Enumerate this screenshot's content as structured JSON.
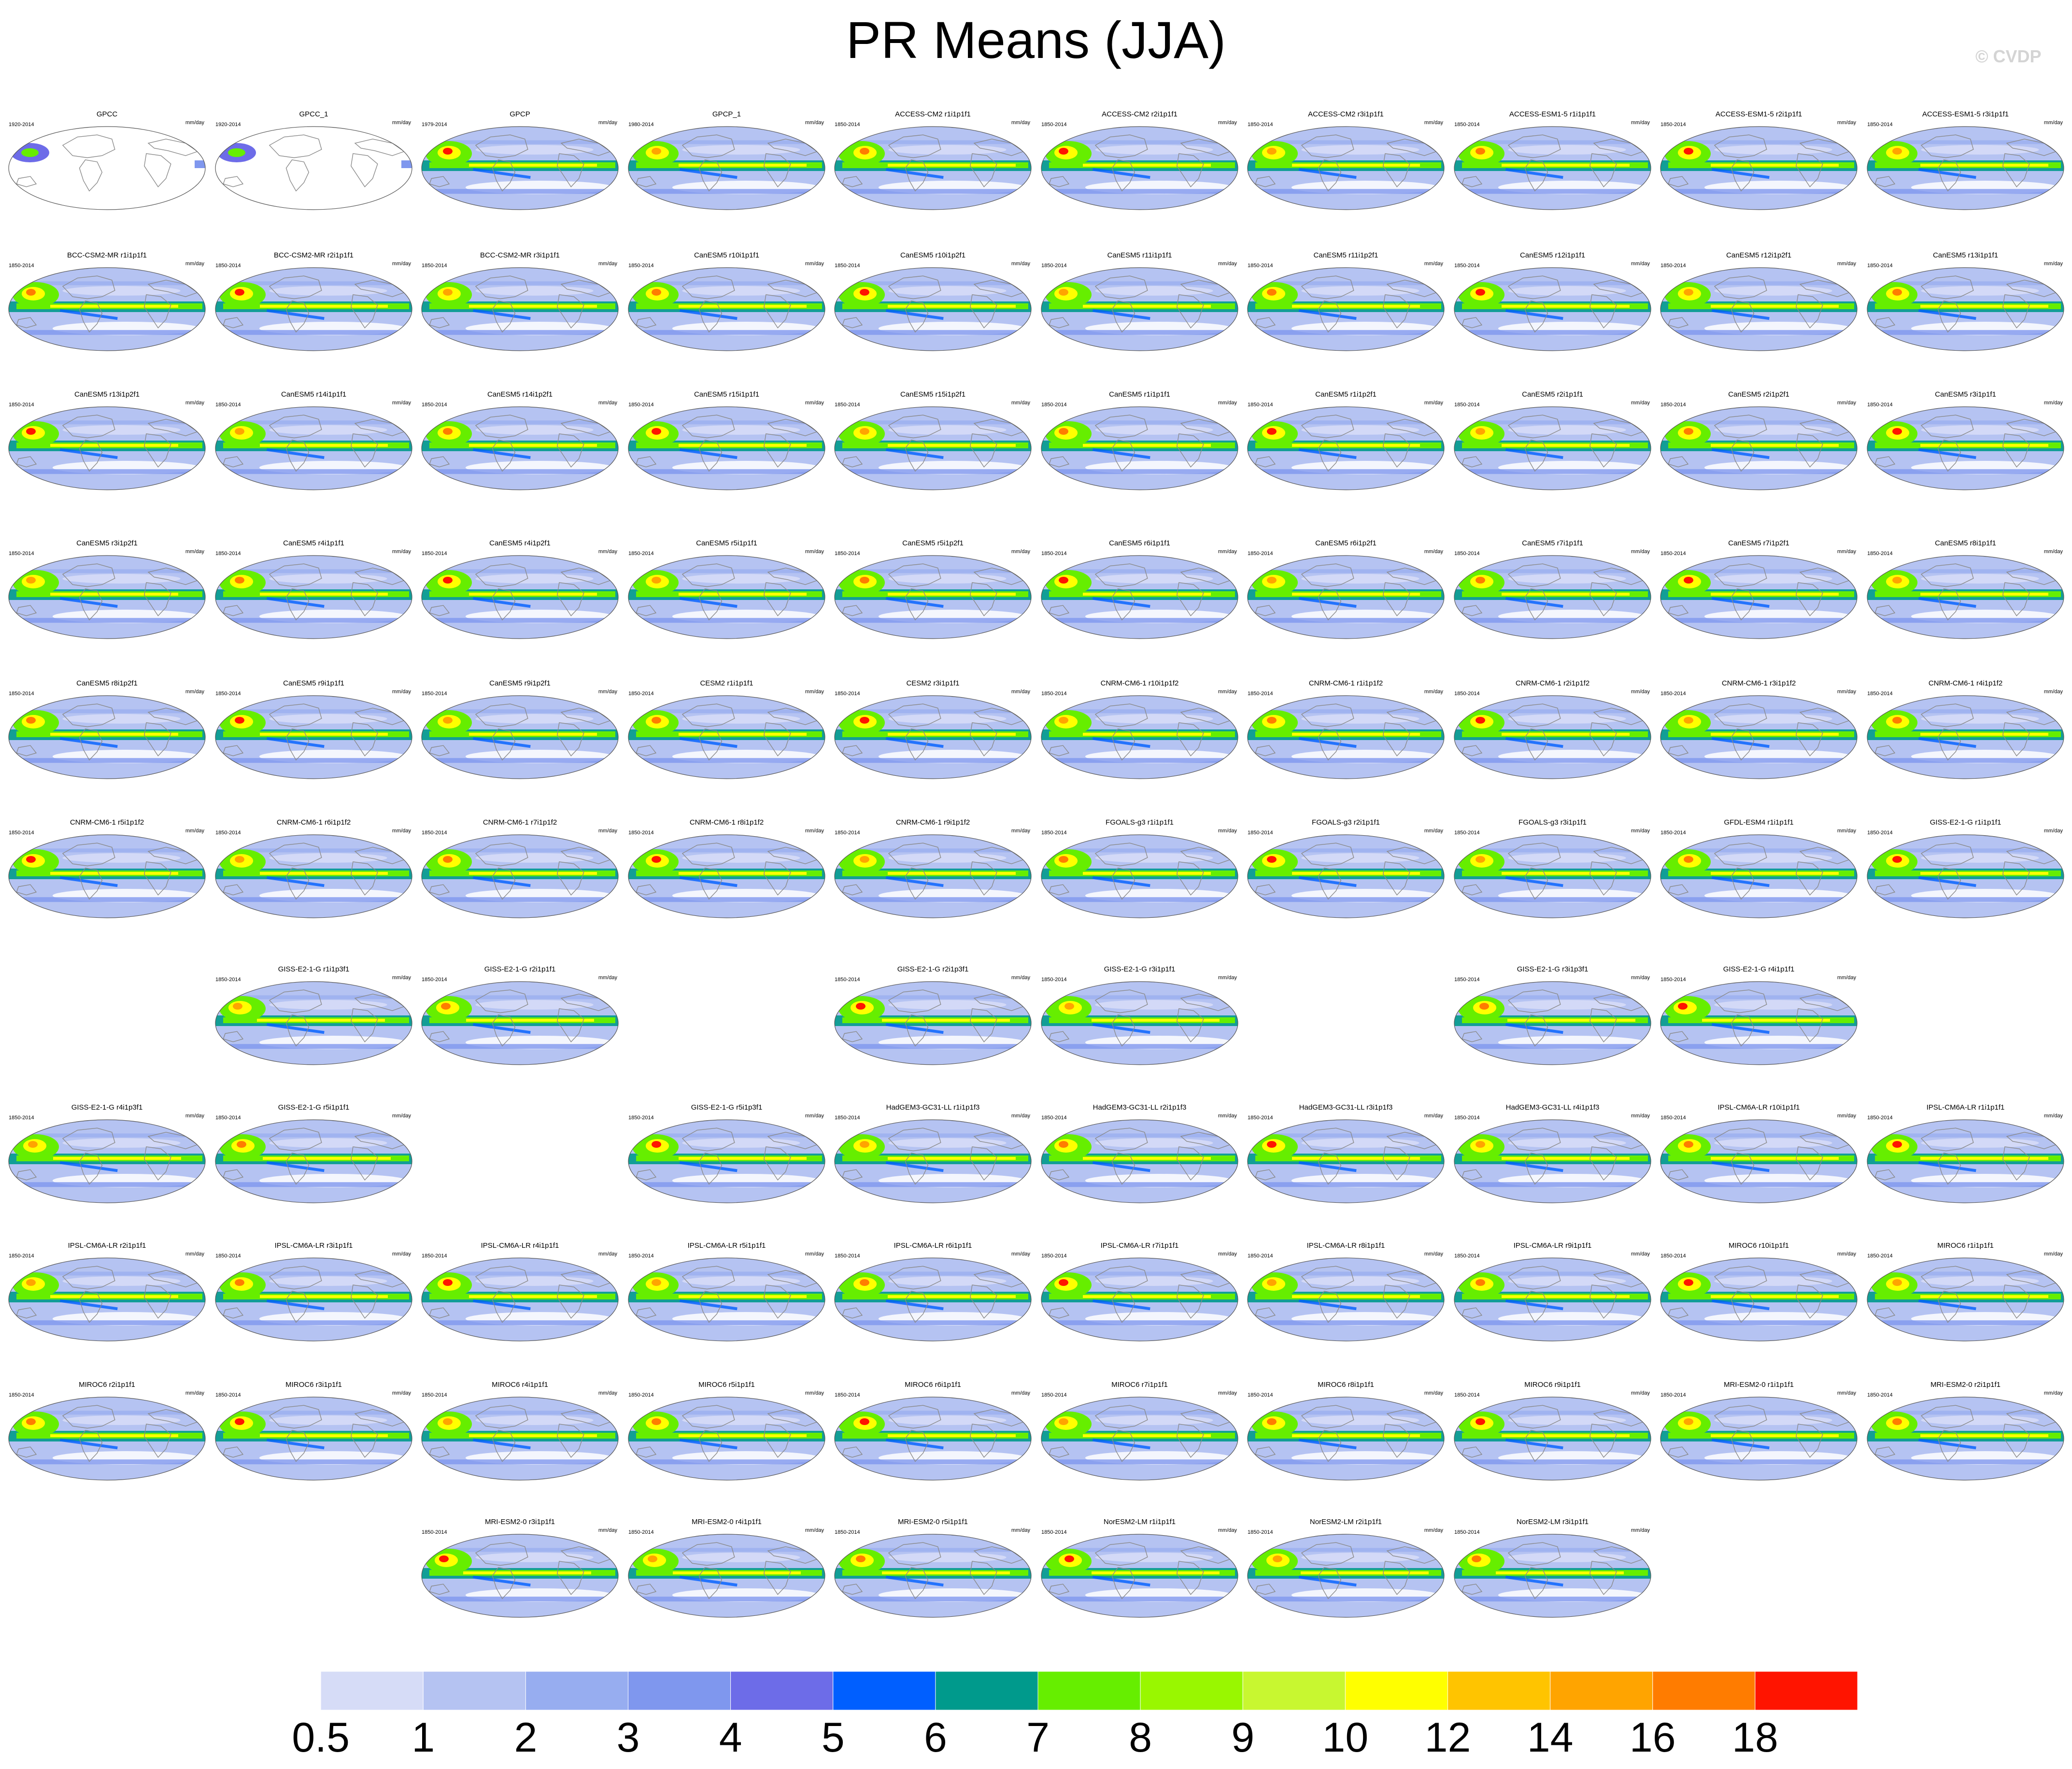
{
  "title": "PR Means (JJA)",
  "copyright": "© CVDP",
  "units": "mm/day",
  "colorbar": {
    "colors": [
      "#ffffff",
      "#d6dcf7",
      "#b5c3f2",
      "#97adf0",
      "#7f97ee",
      "#6d6ce8",
      "#005fff",
      "#009a8c",
      "#66ee00",
      "#99f700",
      "#c8f730",
      "#ffff00",
      "#ffc400",
      "#ffa400",
      "#ff7c00",
      "#ff1400"
    ],
    "labels": [
      "0.5",
      "1",
      "2",
      "3",
      "4",
      "5",
      "6",
      "7",
      "8",
      "9",
      "10",
      "12",
      "14",
      "16",
      "18"
    ]
  },
  "panels": [
    {
      "t": "GPCC",
      "y": "1920-2014",
      "row": 0,
      "col": 0,
      "obs": "gpcc"
    },
    {
      "t": "GPCC_1",
      "y": "1920-2014",
      "row": 0,
      "col": 1,
      "obs": "gpcc"
    },
    {
      "t": "GPCP",
      "y": "1979-2014",
      "row": 0,
      "col": 2,
      "obs": "gpcp"
    },
    {
      "t": "GPCP_1",
      "y": "1980-2014",
      "row": 0,
      "col": 3,
      "obs": "gpcp"
    },
    {
      "t": "ACCESS-CM2 r1i1p1f1",
      "y": "1850-2014",
      "row": 0,
      "col": 4
    },
    {
      "t": "ACCESS-CM2 r2i1p1f1",
      "y": "1850-2014",
      "row": 0,
      "col": 5
    },
    {
      "t": "ACCESS-CM2 r3i1p1f1",
      "y": "1850-2014",
      "row": 0,
      "col": 6
    },
    {
      "t": "ACCESS-ESM1-5 r1i1p1f1",
      "y": "1850-2014",
      "row": 0,
      "col": 7
    },
    {
      "t": "ACCESS-ESM1-5 r2i1p1f1",
      "y": "1850-2014",
      "row": 0,
      "col": 8
    },
    {
      "t": "ACCESS-ESM1-5 r3i1p1f1",
      "y": "1850-2014",
      "row": 0,
      "col": 9
    },
    {
      "t": "BCC-CSM2-MR r1i1p1f1",
      "y": "1850-2014",
      "row": 1,
      "col": 0
    },
    {
      "t": "BCC-CSM2-MR r2i1p1f1",
      "y": "1850-2014",
      "row": 1,
      "col": 1
    },
    {
      "t": "BCC-CSM2-MR r3i1p1f1",
      "y": "1850-2014",
      "row": 1,
      "col": 2
    },
    {
      "t": "CanESM5 r10i1p1f1",
      "y": "1850-2014",
      "row": 1,
      "col": 3
    },
    {
      "t": "CanESM5 r10i1p2f1",
      "y": "1850-2014",
      "row": 1,
      "col": 4
    },
    {
      "t": "CanESM5 r11i1p1f1",
      "y": "1850-2014",
      "row": 1,
      "col": 5
    },
    {
      "t": "CanESM5 r11i1p2f1",
      "y": "1850-2014",
      "row": 1,
      "col": 6
    },
    {
      "t": "CanESM5 r12i1p1f1",
      "y": "1850-2014",
      "row": 1,
      "col": 7
    },
    {
      "t": "CanESM5 r12i1p2f1",
      "y": "1850-2014",
      "row": 1,
      "col": 8
    },
    {
      "t": "CanESM5 r13i1p1f1",
      "y": "1850-2014",
      "row": 1,
      "col": 9
    },
    {
      "t": "CanESM5 r13i1p2f1",
      "y": "1850-2014",
      "row": 2,
      "col": 0
    },
    {
      "t": "CanESM5 r14i1p1f1",
      "y": "1850-2014",
      "row": 2,
      "col": 1
    },
    {
      "t": "CanESM5 r14i1p2f1",
      "y": "1850-2014",
      "row": 2,
      "col": 2
    },
    {
      "t": "CanESM5 r15i1p1f1",
      "y": "1850-2014",
      "row": 2,
      "col": 3
    },
    {
      "t": "CanESM5 r15i1p2f1",
      "y": "1850-2014",
      "row": 2,
      "col": 4
    },
    {
      "t": "CanESM5 r1i1p1f1",
      "y": "1850-2014",
      "row": 2,
      "col": 5
    },
    {
      "t": "CanESM5 r1i1p2f1",
      "y": "1850-2014",
      "row": 2,
      "col": 6
    },
    {
      "t": "CanESM5 r2i1p1f1",
      "y": "1850-2014",
      "row": 2,
      "col": 7
    },
    {
      "t": "CanESM5 r2i1p2f1",
      "y": "1850-2014",
      "row": 2,
      "col": 8
    },
    {
      "t": "CanESM5 r3i1p1f1",
      "y": "1850-2014",
      "row": 2,
      "col": 9
    },
    {
      "t": "CanESM5 r3i1p2f1",
      "y": "1850-2014",
      "row": 3,
      "col": 0
    },
    {
      "t": "CanESM5 r4i1p1f1",
      "y": "1850-2014",
      "row": 3,
      "col": 1
    },
    {
      "t": "CanESM5 r4i1p2f1",
      "y": "1850-2014",
      "row": 3,
      "col": 2
    },
    {
      "t": "CanESM5 r5i1p1f1",
      "y": "1850-2014",
      "row": 3,
      "col": 3
    },
    {
      "t": "CanESM5 r5i1p2f1",
      "y": "1850-2014",
      "row": 3,
      "col": 4
    },
    {
      "t": "CanESM5 r6i1p1f1",
      "y": "1850-2014",
      "row": 3,
      "col": 5
    },
    {
      "t": "CanESM5 r6i1p2f1",
      "y": "1850-2014",
      "row": 3,
      "col": 6
    },
    {
      "t": "CanESM5 r7i1p1f1",
      "y": "1850-2014",
      "row": 3,
      "col": 7
    },
    {
      "t": "CanESM5 r7i1p2f1",
      "y": "1850-2014",
      "row": 3,
      "col": 8
    },
    {
      "t": "CanESM5 r8i1p1f1",
      "y": "1850-2014",
      "row": 3,
      "col": 9
    },
    {
      "t": "CanESM5 r8i1p2f1",
      "y": "1850-2014",
      "row": 4,
      "col": 0
    },
    {
      "t": "CanESM5 r9i1p1f1",
      "y": "1850-2014",
      "row": 4,
      "col": 1
    },
    {
      "t": "CanESM5 r9i1p2f1",
      "y": "1850-2014",
      "row": 4,
      "col": 2
    },
    {
      "t": "CESM2 r1i1p1f1",
      "y": "1850-2014",
      "row": 4,
      "col": 3
    },
    {
      "t": "CESM2 r3i1p1f1",
      "y": "1850-2014",
      "row": 4,
      "col": 4
    },
    {
      "t": "CNRM-CM6-1 r10i1p1f2",
      "y": "1850-2014",
      "row": 4,
      "col": 5
    },
    {
      "t": "CNRM-CM6-1 r1i1p1f2",
      "y": "1850-2014",
      "row": 4,
      "col": 6
    },
    {
      "t": "CNRM-CM6-1 r2i1p1f2",
      "y": "1850-2014",
      "row": 4,
      "col": 7
    },
    {
      "t": "CNRM-CM6-1 r3i1p1f2",
      "y": "1850-2014",
      "row": 4,
      "col": 8
    },
    {
      "t": "CNRM-CM6-1 r4i1p1f2",
      "y": "1850-2014",
      "row": 4,
      "col": 9
    },
    {
      "t": "CNRM-CM6-1 r5i1p1f2",
      "y": "1850-2014",
      "row": 5,
      "col": 0
    },
    {
      "t": "CNRM-CM6-1 r6i1p1f2",
      "y": "1850-2014",
      "row": 5,
      "col": 1
    },
    {
      "t": "CNRM-CM6-1 r7i1p1f2",
      "y": "1850-2014",
      "row": 5,
      "col": 2
    },
    {
      "t": "CNRM-CM6-1 r8i1p1f2",
      "y": "1850-2014",
      "row": 5,
      "col": 3
    },
    {
      "t": "CNRM-CM6-1 r9i1p1f2",
      "y": "1850-2014",
      "row": 5,
      "col": 4
    },
    {
      "t": "FGOALS-g3 r1i1p1f1",
      "y": "1850-2014",
      "row": 5,
      "col": 5
    },
    {
      "t": "FGOALS-g3 r2i1p1f1",
      "y": "1850-2014",
      "row": 5,
      "col": 6
    },
    {
      "t": "FGOALS-g3 r3i1p1f1",
      "y": "1850-2014",
      "row": 5,
      "col": 7
    },
    {
      "t": "GFDL-ESM4 r1i1p1f1",
      "y": "1850-2014",
      "row": 5,
      "col": 8
    },
    {
      "t": "GISS-E2-1-G r1i1p1f1",
      "y": "1850-2014",
      "row": 5,
      "col": 9
    },
    {
      "t": "GISS-E2-1-G r1i1p3f1",
      "y": "1850-2014",
      "row": 6,
      "col": 1
    },
    {
      "t": "GISS-E2-1-G r2i1p1f1",
      "y": "1850-2014",
      "row": 6,
      "col": 2
    },
    {
      "t": "GISS-E2-1-G r2i1p3f1",
      "y": "1850-2014",
      "row": 6,
      "col": 4
    },
    {
      "t": "GISS-E2-1-G r3i1p1f1",
      "y": "1850-2014",
      "row": 6,
      "col": 5
    },
    {
      "t": "GISS-E2-1-G r3i1p3f1",
      "y": "1850-2014",
      "row": 6,
      "col": 7
    },
    {
      "t": "GISS-E2-1-G r4i1p1f1",
      "y": "1850-2014",
      "row": 6,
      "col": 8
    },
    {
      "t": "GISS-E2-1-G r4i1p3f1",
      "y": "1850-2014",
      "row": 7,
      "col": 0
    },
    {
      "t": "GISS-E2-1-G r5i1p1f1",
      "y": "1850-2014",
      "row": 7,
      "col": 1
    },
    {
      "t": "GISS-E2-1-G r5i1p3f1",
      "y": "1850-2014",
      "row": 7,
      "col": 3
    },
    {
      "t": "HadGEM3-GC31-LL r1i1p1f3",
      "y": "1850-2014",
      "row": 7,
      "col": 4
    },
    {
      "t": "HadGEM3-GC31-LL r2i1p1f3",
      "y": "1850-2014",
      "row": 7,
      "col": 5
    },
    {
      "t": "HadGEM3-GC31-LL r3i1p1f3",
      "y": "1850-2014",
      "row": 7,
      "col": 6
    },
    {
      "t": "HadGEM3-GC31-LL r4i1p1f3",
      "y": "1850-2014",
      "row": 7,
      "col": 7
    },
    {
      "t": "IPSL-CM6A-LR r10i1p1f1",
      "y": "1850-2014",
      "row": 7,
      "col": 8
    },
    {
      "t": "IPSL-CM6A-LR r1i1p1f1",
      "y": "1850-2014",
      "row": 7,
      "col": 9
    },
    {
      "t": "IPSL-CM6A-LR r2i1p1f1",
      "y": "1850-2014",
      "row": 8,
      "col": 0
    },
    {
      "t": "IPSL-CM6A-LR r3i1p1f1",
      "y": "1850-2014",
      "row": 8,
      "col": 1
    },
    {
      "t": "IPSL-CM6A-LR r4i1p1f1",
      "y": "1850-2014",
      "row": 8,
      "col": 2
    },
    {
      "t": "IPSL-CM6A-LR r5i1p1f1",
      "y": "1850-2014",
      "row": 8,
      "col": 3
    },
    {
      "t": "IPSL-CM6A-LR r6i1p1f1",
      "y": "1850-2014",
      "row": 8,
      "col": 4
    },
    {
      "t": "IPSL-CM6A-LR r7i1p1f1",
      "y": "1850-2014",
      "row": 8,
      "col": 5
    },
    {
      "t": "IPSL-CM6A-LR r8i1p1f1",
      "y": "1850-2014",
      "row": 8,
      "col": 6
    },
    {
      "t": "IPSL-CM6A-LR r9i1p1f1",
      "y": "1850-2014",
      "row": 8,
      "col": 7
    },
    {
      "t": "MIROC6 r10i1p1f1",
      "y": "1850-2014",
      "row": 8,
      "col": 8
    },
    {
      "t": "MIROC6 r1i1p1f1",
      "y": "1850-2014",
      "row": 8,
      "col": 9
    },
    {
      "t": "MIROC6 r2i1p1f1",
      "y": "1850-2014",
      "row": 9,
      "col": 0
    },
    {
      "t": "MIROC6 r3i1p1f1",
      "y": "1850-2014",
      "row": 9,
      "col": 1
    },
    {
      "t": "MIROC6 r4i1p1f1",
      "y": "1850-2014",
      "row": 9,
      "col": 2
    },
    {
      "t": "MIROC6 r5i1p1f1",
      "y": "1850-2014",
      "row": 9,
      "col": 3
    },
    {
      "t": "MIROC6 r6i1p1f1",
      "y": "1850-2014",
      "row": 9,
      "col": 4
    },
    {
      "t": "MIROC6 r7i1p1f1",
      "y": "1850-2014",
      "row": 9,
      "col": 5
    },
    {
      "t": "MIROC6 r8i1p1f1",
      "y": "1850-2014",
      "row": 9,
      "col": 6
    },
    {
      "t": "MIROC6 r9i1p1f1",
      "y": "1850-2014",
      "row": 9,
      "col": 7
    },
    {
      "t": "MRI-ESM2-0 r1i1p1f1",
      "y": "1850-2014",
      "row": 9,
      "col": 8
    },
    {
      "t": "MRI-ESM2-0 r2i1p1f1",
      "y": "1850-2014",
      "row": 9,
      "col": 9
    },
    {
      "t": "MRI-ESM2-0 r3i1p1f1",
      "y": "1850-2014",
      "row": 10,
      "col": 2
    },
    {
      "t": "MRI-ESM2-0 r4i1p1f1",
      "y": "1850-2014",
      "row": 10,
      "col": 3
    },
    {
      "t": "MRI-ESM2-0 r5i1p1f1",
      "y": "1850-2014",
      "row": 10,
      "col": 4
    },
    {
      "t": "NorESM2-LM r1i1p1f1",
      "y": "1850-2014",
      "row": 10,
      "col": 5
    },
    {
      "t": "NorESM2-LM r2i1p1f1",
      "y": "1850-2014",
      "row": 10,
      "col": 6
    },
    {
      "t": "NorESM2-LM r3i1p1f1",
      "y": "1850-2014",
      "row": 10,
      "col": 7
    }
  ]
}
